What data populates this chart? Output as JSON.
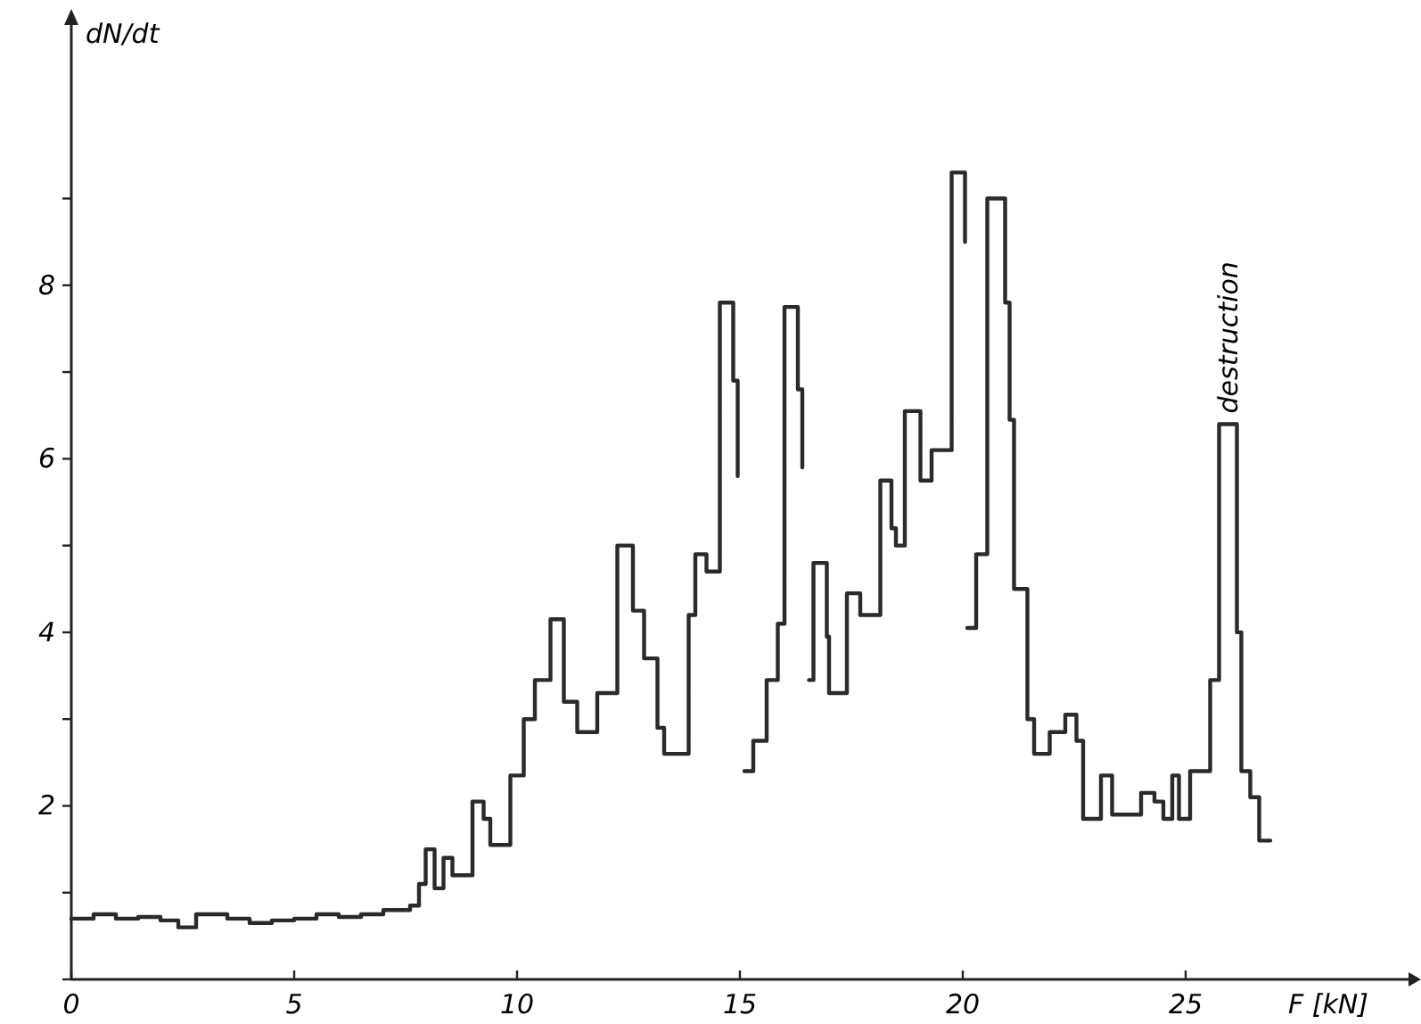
{
  "chart_data": {
    "type": "step",
    "xlabel": "F [kN]",
    "ylabel": "dN/dt",
    "xlim": [
      0,
      30
    ],
    "ylim": [
      0,
      11
    ],
    "xticks": [
      0,
      5,
      10,
      15,
      20,
      25
    ],
    "yticks": [
      {
        "value": 0,
        "label": null
      },
      {
        "value": 1,
        "label": null
      },
      2,
      {
        "value": 3,
        "label": null
      },
      4,
      {
        "value": 5,
        "label": null
      },
      6,
      {
        "value": 7,
        "label": null
      },
      8,
      {
        "value": 9,
        "label": null
      }
    ],
    "grid": false,
    "marker": "none",
    "line_style": "solid",
    "annotations": [
      {
        "text": "destruction",
        "x": 25.95,
        "y": 6.4
      }
    ],
    "series": [
      {
        "color": "#2a2a2a",
        "x": [
          0,
          0.5,
          1,
          1.5,
          2,
          2.4,
          2.8,
          3.5,
          4,
          4.5,
          5,
          5.5,
          6,
          6.5,
          7,
          7.6,
          7.8,
          7.95,
          8.15,
          8.35,
          8.55,
          9.0,
          9.25,
          9.4,
          9.85,
          10.15,
          10.4,
          10.75,
          11.05,
          11.35,
          11.8,
          12.25,
          12.6,
          12.85,
          13.15,
          13.3,
          13.85,
          14.0,
          14.25,
          14.55,
          14.85,
          14.95,
          15.0,
          15.1,
          15.3,
          15.6,
          15.85,
          16.0,
          16.3,
          16.4,
          16.5,
          16.55,
          16.65,
          16.95,
          17.0,
          17.4,
          17.7,
          18.15,
          18.4,
          18.5,
          18.7,
          19.05,
          19.3,
          19.75,
          20.05,
          20.07,
          20.1,
          20.3,
          20.55,
          20.95,
          21.05,
          21.15,
          21.45,
          21.6,
          21.95,
          22.3,
          22.55,
          22.7,
          23.1,
          23.35,
          24.0,
          24.3,
          24.5,
          24.7,
          24.85,
          25.1,
          25.55,
          25.75,
          26.15,
          26.25,
          26.45,
          26.65,
          26.9
        ],
        "values": [
          0.7,
          0.75,
          0.7,
          0.72,
          0.68,
          0.6,
          0.75,
          0.7,
          0.65,
          0.68,
          0.7,
          0.75,
          0.72,
          0.75,
          0.8,
          0.85,
          1.1,
          1.5,
          1.05,
          1.4,
          1.2,
          2.05,
          1.85,
          1.55,
          2.35,
          3.0,
          3.45,
          4.15,
          3.2,
          2.85,
          3.3,
          5.0,
          4.25,
          3.7,
          2.9,
          2.6,
          4.2,
          4.9,
          4.7,
          7.8,
          6.9,
          5.8,
          null,
          2.4,
          2.75,
          3.45,
          4.1,
          7.75,
          6.8,
          5.9,
          null,
          3.45,
          4.8,
          3.95,
          3.3,
          4.45,
          4.2,
          5.75,
          5.2,
          5.0,
          6.55,
          5.75,
          6.1,
          9.3,
          8.5,
          null,
          4.05,
          4.9,
          9.0,
          7.8,
          6.45,
          4.5,
          3.0,
          2.6,
          2.85,
          3.05,
          2.75,
          1.85,
          2.35,
          1.9,
          2.15,
          2.05,
          1.85,
          2.35,
          1.85,
          2.4,
          3.45,
          6.4,
          4.0,
          2.4,
          2.1,
          1.6,
          1.6
        ]
      }
    ]
  }
}
